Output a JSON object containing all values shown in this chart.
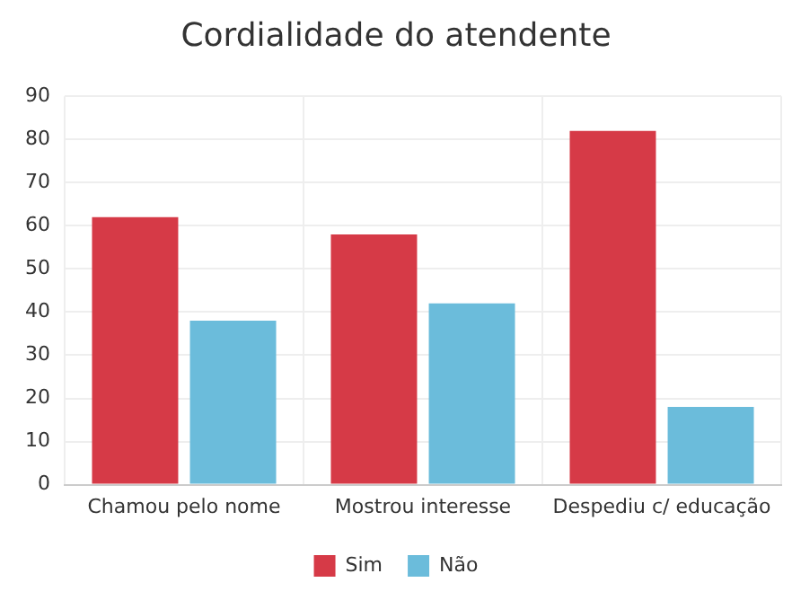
{
  "chart_data": {
    "type": "bar",
    "title": "Cordialidade do atendente",
    "categories": [
      "Chamou pelo nome",
      "Mostrou interesse",
      "Despediu c/ educação"
    ],
    "series": [
      {
        "name": "Sim",
        "color": "#d63a47",
        "values": [
          62,
          58,
          82
        ]
      },
      {
        "name": "Não",
        "color": "#6bbcdb",
        "values": [
          38,
          42,
          18
        ]
      }
    ],
    "ylim": [
      0,
      90
    ],
    "yticks": [
      0,
      10,
      20,
      30,
      40,
      50,
      60,
      70,
      80,
      90
    ],
    "grid": true,
    "legend": "bottom"
  }
}
